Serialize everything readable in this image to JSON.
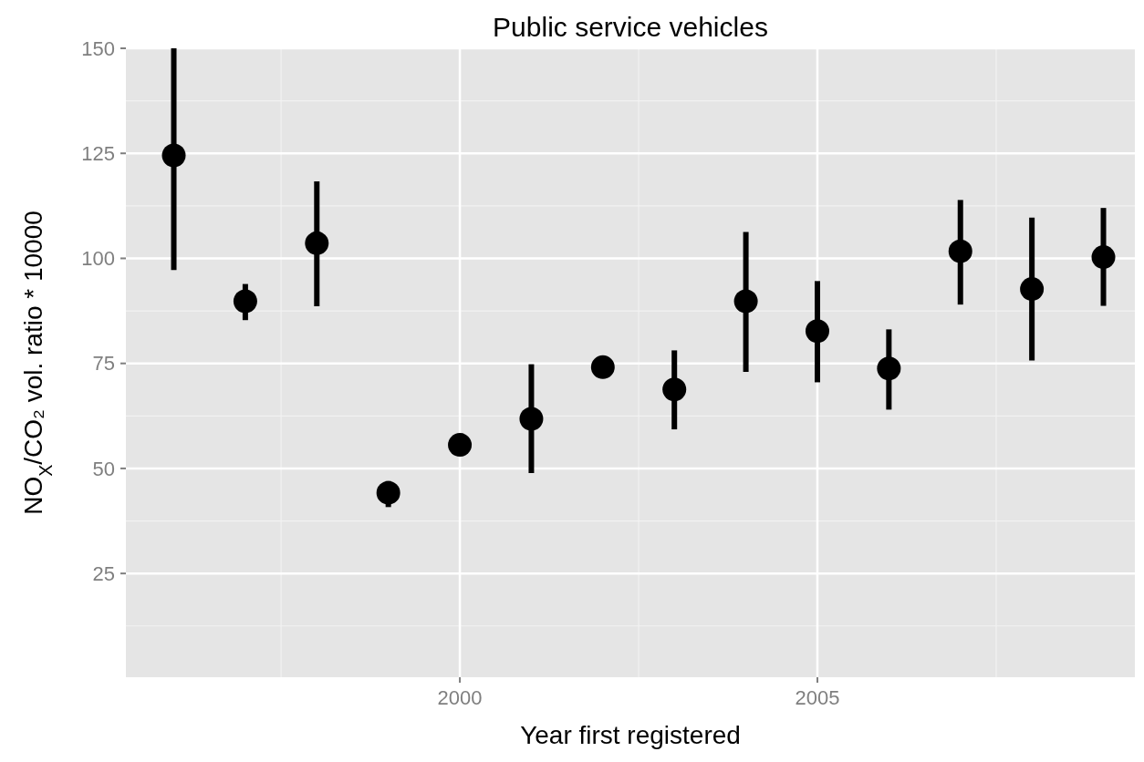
{
  "chart_data": {
    "type": "scatter",
    "title": "Public service vehicles",
    "xlabel": "Year first registered",
    "ylabel": "NO$_{X}$/CO₂ vol. ratio * 10000",
    "x": [
      1996,
      1997,
      1998,
      1999,
      2000,
      2001,
      2002,
      2003,
      2004,
      2005,
      2006,
      2007,
      2008,
      2009
    ],
    "values": [
      124.5,
      89.8,
      103.6,
      44.2,
      55.6,
      61.8,
      74.1,
      68.8,
      89.8,
      82.7,
      73.8,
      101.7,
      92.7,
      100.3
    ],
    "errors": [
      [
        97.2,
        150
      ],
      [
        85.3,
        93.9
      ],
      [
        88.6,
        118.3
      ],
      [
        40.8,
        47
      ],
      null,
      [
        48.9,
        74.8
      ],
      null,
      [
        59.3,
        78.1
      ],
      [
        73.0,
        106.3
      ],
      [
        70.5,
        94.6
      ],
      [
        64.0,
        83.1
      ],
      [
        89.0,
        113.9
      ],
      [
        75.7,
        109.7
      ],
      [
        88.7,
        112.0
      ]
    ],
    "color": "#000000",
    "marker": "circle",
    "xlim": [
      1995.33,
      2009.44
    ],
    "xticks": [
      2000,
      2005
    ],
    "ylim": [
      0.3,
      150
    ],
    "yticks": [
      25,
      50,
      75,
      100,
      125,
      150
    ],
    "grid": true
  }
}
